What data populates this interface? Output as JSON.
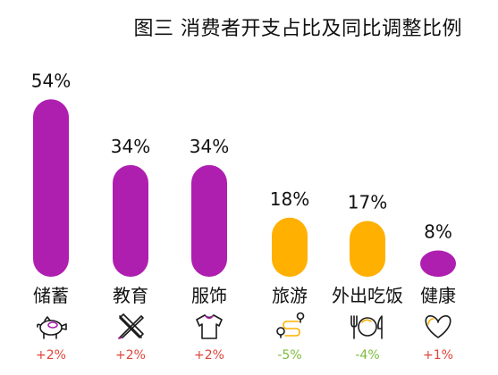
{
  "title": "图三  消费者开支占比及同比调整比例",
  "chart_data": {
    "type": "bar",
    "title": "图三  消费者开支占比及同比调整比例",
    "categories": [
      "储蓄",
      "教育",
      "服饰",
      "旅游",
      "外出吃饭",
      "健康"
    ],
    "values": [
      54,
      34,
      34,
      18,
      17,
      8
    ],
    "value_labels": [
      "54%",
      "34%",
      "34%",
      "18%",
      "17%",
      "8%"
    ],
    "changes": [
      "+2%",
      "+2%",
      "+2%",
      "-5%",
      "-4%",
      "+1%"
    ],
    "ylim": [
      0,
      60
    ],
    "grid": false,
    "icons": [
      "piggy-bank-icon",
      "pencil-ruler-icon",
      "tshirt-icon",
      "route-pin-icon",
      "fork-plate-knife-icon",
      "heart-icon"
    ]
  },
  "colors": {
    "increase_bar": "#AE1FAF",
    "decrease_bar": "#FFB000",
    "positive_change": "#E0443A",
    "negative_change": "#7DBA3A",
    "accent_icon_purple": "#AE1FAF",
    "accent_icon_orange": "#FFB000"
  }
}
